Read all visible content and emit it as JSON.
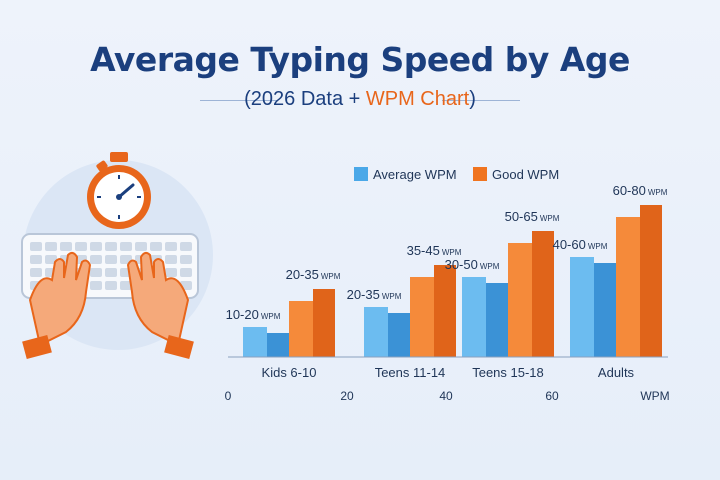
{
  "chart_data": {
    "type": "bar",
    "title": "Average Typing Speed by Age",
    "subtitle_prefix": "(2026 Data + ",
    "subtitle_accent": "WPM Chart",
    "subtitle_suffix": ")",
    "categories": [
      "Kids 6-10",
      "Teens 11-14",
      "Teens 15-18",
      "Adults"
    ],
    "series": [
      {
        "name": "Average WPM",
        "color": "#4aa8e8",
        "values": [
          15,
          25,
          40,
          50
        ],
        "labels": [
          "10-20 WPM",
          "20-35 WPM",
          "30-50 WPM",
          "40-60 WPM"
        ]
      },
      {
        "name": "Good WPM",
        "color": "#f0741f",
        "values": [
          28,
          40,
          57,
          70
        ],
        "labels": [
          "20-35 WPM",
          "35-45 WPM",
          "50-65 WPM",
          "60-80 WPM"
        ]
      }
    ],
    "xticks": [
      "0",
      "20",
      "40",
      "60"
    ],
    "xlabel": "WPM",
    "legend_position": "top"
  },
  "illustration": {
    "icons": [
      "stopwatch-icon",
      "keyboard-icon",
      "hands-icon"
    ]
  },
  "colors": {
    "title": "#1b3f7e",
    "accent": "#e8661b",
    "avg_bar": "#4aa8e8",
    "good_bar": "#f0741f"
  }
}
